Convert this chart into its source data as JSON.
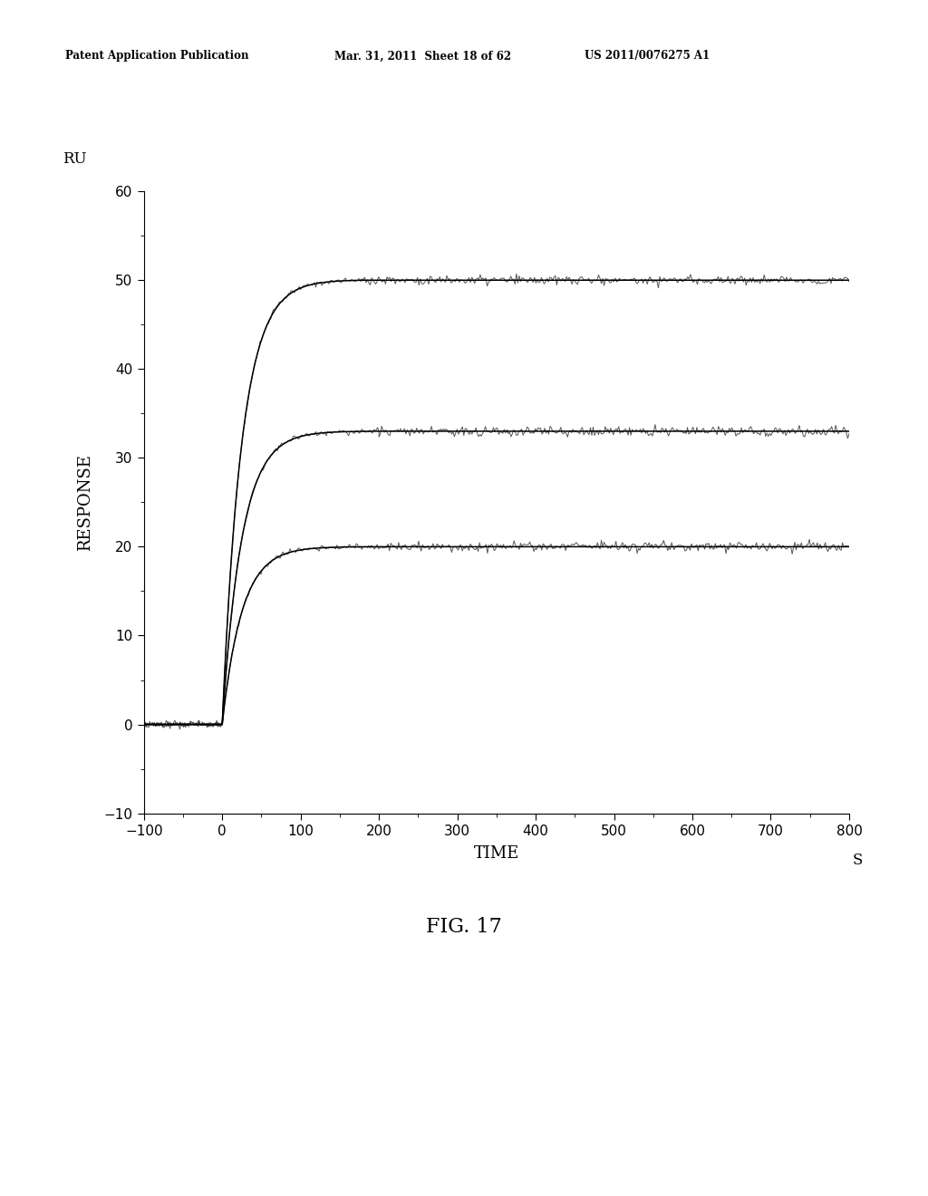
{
  "xlabel": "TIME",
  "ylabel": "RESPONSE",
  "ylabel2": "RU",
  "xlabel2": "S",
  "xlim": [
    -100,
    800
  ],
  "ylim": [
    -10,
    60
  ],
  "xticks": [
    -100,
    0,
    100,
    200,
    300,
    400,
    500,
    600,
    700,
    800
  ],
  "yticks": [
    -10,
    0,
    10,
    20,
    30,
    40,
    50,
    60
  ],
  "fig_caption": "FIG. 17",
  "header_left": "Patent Application Publication",
  "header_mid": "Mar. 31, 2011  Sheet 18 of 62",
  "header_right": "US 2011/0076275 A1",
  "curve_levels": [
    50,
    33,
    20
  ],
  "plateau_times": [
    180,
    200,
    210
  ],
  "noise_amp": 0.45,
  "background": "#ffffff",
  "line_color": "#444444"
}
